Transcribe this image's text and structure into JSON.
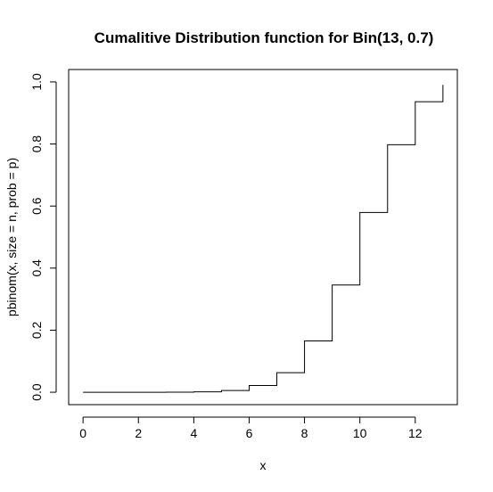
{
  "chart_data": {
    "type": "line",
    "step": true,
    "title": "Cumalitive Distribution function for Bin(13, 0.7)",
    "xlabel": "x",
    "ylabel": "pbinom(x, size = n, prob = p)",
    "xlim": [
      -0.52,
      13.52
    ],
    "ylim": [
      -0.04,
      1.04
    ],
    "x_ticks": [
      0,
      2,
      4,
      6,
      8,
      10,
      12
    ],
    "x_tick_labels": [
      "0",
      "2",
      "4",
      "6",
      "8",
      "10",
      "12"
    ],
    "y_ticks": [
      0.0,
      0.2,
      0.4,
      0.6,
      0.8,
      1.0
    ],
    "y_tick_labels": [
      "0.0",
      "0.2",
      "0.4",
      "0.6",
      "0.8",
      "1.0"
    ],
    "x": [
      0,
      1,
      2,
      3,
      4,
      5,
      6,
      7,
      8,
      9,
      10,
      11,
      12,
      13
    ],
    "y": [
      0.0,
      0.0,
      0.0,
      0.0001,
      0.0013,
      0.0056,
      0.0218,
      0.0632,
      0.1654,
      0.3457,
      0.5794,
      0.7975,
      0.9363,
      0.9903
    ],
    "grid": false,
    "line_color": "#000000"
  }
}
